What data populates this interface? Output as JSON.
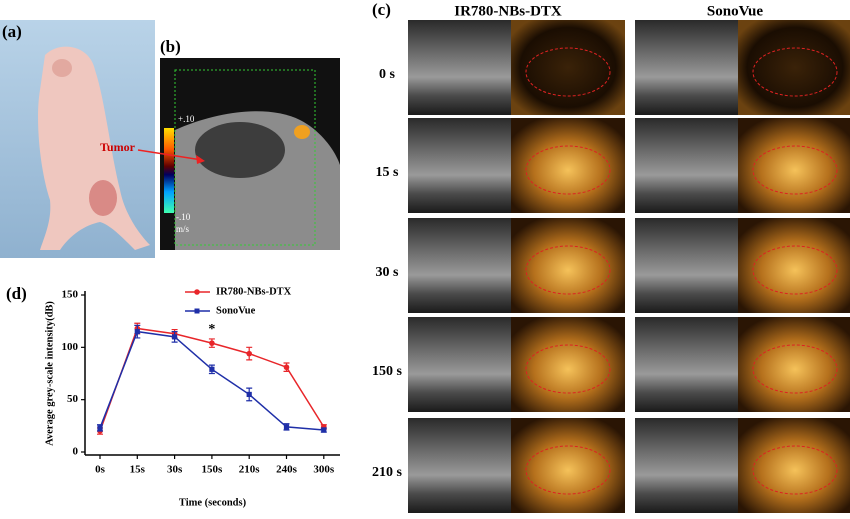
{
  "panel_labels": [
    "(a)",
    "(b)",
    "(c)",
    "(d)"
  ],
  "tumor_label": "Tumor",
  "scale_labels": [
    "+.10",
    "-.10",
    "m/s"
  ],
  "grid_columns": [
    "IR780-NBs-DTX",
    "SonoVue"
  ],
  "grid_rows": [
    "0 s",
    "15 s",
    "30 s",
    "150 s",
    "210 s"
  ],
  "chart_data": {
    "type": "line",
    "ylabel": "Average grey-scale intensity(dB)",
    "xlabel": "Time (seconds)",
    "categories": [
      "0s",
      "15s",
      "30s",
      "150s",
      "210s",
      "240s",
      "300s"
    ],
    "series": [
      {
        "name": "IR780-NBs-DTX",
        "color": "#e8262a",
        "values": [
          20,
          118,
          113,
          104,
          94,
          81,
          24
        ],
        "errors": [
          3,
          5,
          4,
          4,
          6,
          4,
          2
        ]
      },
      {
        "name": "SonoVue",
        "color": "#1f2fa8",
        "values": [
          23,
          115,
          110,
          79,
          55,
          24,
          21
        ],
        "errors": [
          3,
          6,
          5,
          4,
          6,
          3,
          2
        ]
      }
    ],
    "ylim": [
      0,
      150
    ],
    "yticks": [
      0,
      50,
      100,
      150
    ],
    "annotations": [
      {
        "text": "*",
        "at": "150s"
      }
    ]
  }
}
